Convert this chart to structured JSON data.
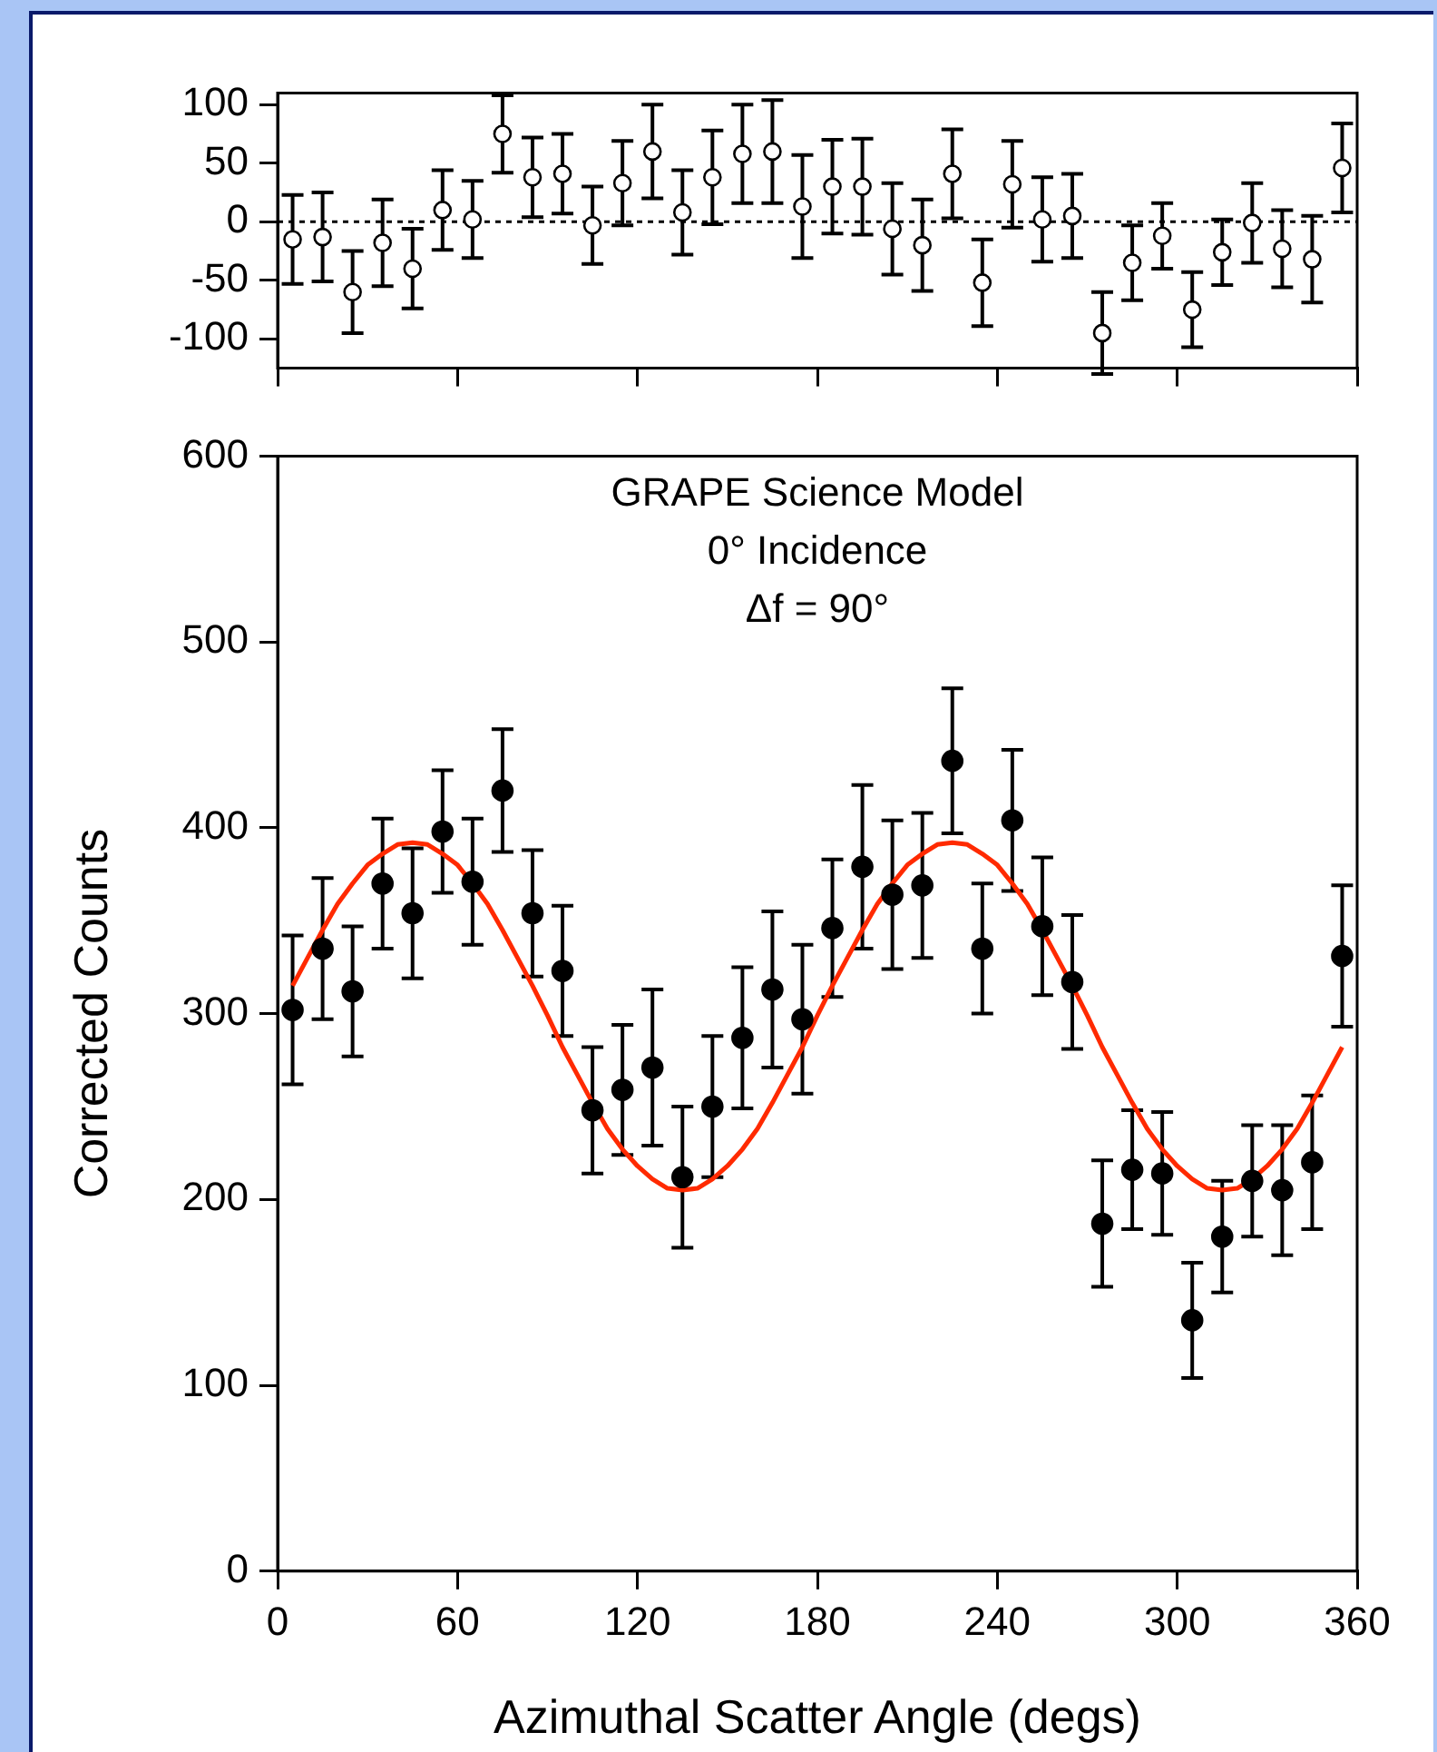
{
  "chart_data": [
    {
      "type": "scatter",
      "xlim": [
        0,
        360
      ],
      "xticks": [
        0,
        60,
        120,
        180,
        240,
        300,
        360
      ],
      "ylim": [
        -125,
        110
      ],
      "yticks": [
        -100,
        -50,
        0,
        50,
        100
      ],
      "tick_labels": "y",
      "grid": false,
      "legend": false,
      "marker": "circle",
      "ref_lines": [
        {
          "axis": "y",
          "value": 0,
          "line_style": "dotted",
          "color": "#000000"
        }
      ],
      "series": [
        {
          "color": "#000000",
          "x": [
            5,
            15,
            25,
            35,
            45,
            55,
            65,
            75,
            85,
            95,
            105,
            115,
            125,
            135,
            145,
            155,
            165,
            175,
            185,
            195,
            205,
            215,
            225,
            235,
            245,
            255,
            265,
            275,
            285,
            295,
            305,
            315,
            325,
            335,
            345,
            355
          ],
          "values": [
            -15,
            -13,
            -60,
            -18,
            -40,
            10,
            2,
            75,
            38,
            41,
            -3,
            33,
            60,
            8,
            38,
            58,
            60,
            13,
            30,
            30,
            -6,
            -20,
            41,
            -52,
            32,
            2,
            5,
            -95,
            -35,
            -12,
            -75,
            -26,
            -1,
            -23,
            -32,
            46
          ],
          "errors": [
            38,
            38,
            35,
            37,
            34,
            34,
            33,
            33,
            34,
            34,
            33,
            36,
            40,
            36,
            40,
            42,
            44,
            44,
            40,
            41,
            39,
            39,
            38,
            37,
            37,
            36,
            36,
            35,
            32,
            28,
            32,
            28,
            34,
            33,
            37,
            38
          ]
        }
      ]
    },
    {
      "type": "scatter",
      "xlabel": "Azimuthal Scatter Angle (degs)",
      "ylabel": "Corrected Counts",
      "xlim": [
        0,
        360
      ],
      "xticks": [
        0,
        60,
        120,
        180,
        240,
        300,
        360
      ],
      "ylim": [
        0,
        600
      ],
      "yticks": [
        0,
        100,
        200,
        300,
        400,
        500,
        600
      ],
      "grid": false,
      "legend": false,
      "marker": "circle",
      "annotations": [
        "GRAPE Science Model",
        "0° Incidence",
        "Δf = 90°"
      ],
      "series": [
        {
          "color": "#000000",
          "x": [
            5,
            15,
            25,
            35,
            45,
            55,
            65,
            75,
            85,
            95,
            105,
            115,
            125,
            135,
            145,
            155,
            165,
            175,
            185,
            195,
            205,
            215,
            225,
            235,
            245,
            255,
            265,
            275,
            285,
            295,
            305,
            315,
            325,
            335,
            345,
            355
          ],
          "values": [
            302,
            335,
            312,
            370,
            354,
            398,
            371,
            420,
            354,
            323,
            248,
            259,
            271,
            212,
            250,
            287,
            313,
            297,
            346,
            379,
            364,
            369,
            436,
            335,
            404,
            347,
            317,
            187,
            216,
            214,
            135,
            180,
            210,
            205,
            220,
            331
          ],
          "errors": [
            40,
            38,
            35,
            35,
            35,
            33,
            34,
            33,
            34,
            35,
            34,
            35,
            42,
            38,
            38,
            38,
            42,
            40,
            37,
            44,
            40,
            39,
            39,
            35,
            38,
            37,
            36,
            34,
            32,
            33,
            31,
            30,
            30,
            35,
            36,
            38
          ]
        },
        {
          "type": "line",
          "color": "#ff2a00",
          "marker": "none",
          "x": [
            5,
            10,
            15,
            20,
            25,
            30,
            35,
            40,
            45,
            50,
            55,
            60,
            65,
            70,
            75,
            80,
            85,
            90,
            95,
            100,
            105,
            110,
            115,
            120,
            125,
            130,
            135,
            140,
            145,
            150,
            155,
            160,
            165,
            170,
            175,
            180,
            185,
            190,
            195,
            200,
            205,
            210,
            215,
            220,
            225,
            230,
            235,
            240,
            245,
            250,
            255,
            260,
            265,
            270,
            275,
            280,
            285,
            290,
            295,
            300,
            305,
            310,
            315,
            320,
            325,
            330,
            335,
            340,
            345,
            350,
            355
          ],
          "values": [
            315,
            330,
            345,
            359,
            370,
            380,
            386,
            391,
            392,
            391,
            386,
            380,
            370,
            359,
            345,
            330,
            315,
            299,
            282,
            267,
            252,
            238,
            227,
            218,
            211,
            206,
            205,
            206,
            211,
            218,
            227,
            238,
            252,
            267,
            282,
            299,
            315,
            330,
            345,
            359,
            370,
            380,
            386,
            391,
            392,
            391,
            386,
            380,
            370,
            359,
            345,
            330,
            315,
            299,
            282,
            267,
            252,
            238,
            227,
            218,
            211,
            206,
            205,
            206,
            211,
            218,
            227,
            238,
            252,
            267,
            282
          ]
        }
      ]
    }
  ]
}
